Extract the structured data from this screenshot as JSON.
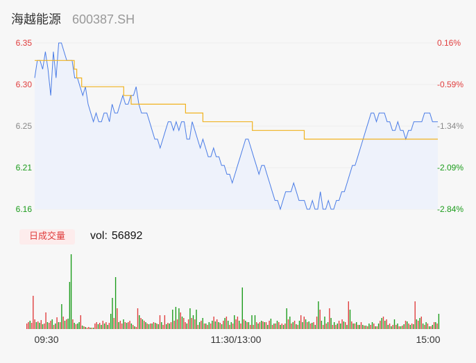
{
  "header": {
    "name": "海越能源",
    "code": "600387.SH"
  },
  "volume": {
    "badge": "日成交量",
    "label": "vol:",
    "value": "56892"
  },
  "colors": {
    "up": "#e03c3c",
    "down": "#1a9b1a",
    "price_line": "#4a7ce6",
    "avg_line": "#f0b21e",
    "neutral": "#888888"
  },
  "chart_data": [
    {
      "type": "line",
      "series": [
        {
          "values": [
            6.31,
            6.33,
            6.33,
            6.32,
            6.34,
            6.32,
            6.29,
            6.34,
            6.31,
            6.35,
            6.35,
            6.34,
            6.33,
            6.33,
            6.33,
            6.31,
            6.31,
            6.3,
            6.29,
            6.3,
            6.28,
            6.27,
            6.26,
            6.27,
            6.26,
            6.26,
            6.27,
            6.27,
            6.26,
            6.28,
            6.27,
            6.27,
            6.28,
            6.29,
            6.28,
            6.28,
            6.29,
            6.29,
            6.3,
            6.28,
            6.27,
            6.27,
            6.27,
            6.26,
            6.25,
            6.24,
            6.24,
            6.23,
            6.24,
            6.25,
            6.26,
            6.26,
            6.25,
            6.26,
            6.25,
            6.26,
            6.26,
            6.24,
            6.24,
            6.26,
            6.25,
            6.24,
            6.23,
            6.24,
            6.23,
            6.22,
            6.22,
            6.23,
            6.22,
            6.22,
            6.21,
            6.21,
            6.2,
            6.2,
            6.19,
            6.2,
            6.21,
            6.22,
            6.23,
            6.24,
            6.24,
            6.23,
            6.22,
            6.21,
            6.2,
            6.21,
            6.21,
            6.2,
            6.19,
            6.18,
            6.17,
            6.17,
            6.16,
            6.17,
            6.18,
            6.18,
            6.18,
            6.19,
            6.18,
            6.17,
            6.17,
            6.17,
            6.16,
            6.16,
            6.17,
            6.16,
            6.16,
            6.18,
            6.16,
            6.16,
            6.17,
            6.16,
            6.16,
            6.17,
            6.17,
            6.18,
            6.18,
            6.19,
            6.2,
            6.21,
            6.21,
            6.22,
            6.23,
            6.24,
            6.25,
            6.26,
            6.27,
            6.27,
            6.26,
            6.27,
            6.27,
            6.27,
            6.26,
            6.26,
            6.25,
            6.25,
            6.26,
            6.25,
            6.25,
            6.24,
            6.25,
            6.25,
            6.26,
            6.26,
            6.26,
            6.26,
            6.27,
            6.27,
            6.27,
            6.26,
            6.26,
            6.26
          ]
        },
        {
          "values": [
            6.33,
            6.33,
            6.33,
            6.33,
            6.33,
            6.33,
            6.33,
            6.33,
            6.33,
            6.33,
            6.33,
            6.33,
            6.33,
            6.33,
            6.33,
            6.33,
            6.32,
            6.31,
            6.31,
            6.3,
            6.3,
            6.3,
            6.3,
            6.3,
            6.3,
            6.3,
            6.3,
            6.3,
            6.3,
            6.3,
            6.3,
            6.3,
            6.3,
            6.3,
            6.3,
            6.3,
            6.29,
            6.29,
            6.29,
            6.28,
            6.28,
            6.28,
            6.28,
            6.28,
            6.28,
            6.28,
            6.28,
            6.28,
            6.28,
            6.28,
            6.28,
            6.28,
            6.28,
            6.28,
            6.28,
            6.28,
            6.28,
            6.28,
            6.28,
            6.28,
            6.28,
            6.27,
            6.27,
            6.27,
            6.27,
            6.27,
            6.27,
            6.27,
            6.26,
            6.26,
            6.26,
            6.26,
            6.26,
            6.26,
            6.26,
            6.26,
            6.26,
            6.26,
            6.26,
            6.26,
            6.26,
            6.26,
            6.26,
            6.26,
            6.26,
            6.26,
            6.26,
            6.26,
            6.25,
            6.25,
            6.25,
            6.25,
            6.25,
            6.25,
            6.25,
            6.25,
            6.25,
            6.25,
            6.25,
            6.25,
            6.25,
            6.25,
            6.25,
            6.25,
            6.25,
            6.25,
            6.25,
            6.25,
            6.25,
            6.24,
            6.24,
            6.24,
            6.24,
            6.24,
            6.24,
            6.24,
            6.24,
            6.24,
            6.24,
            6.24,
            6.24,
            6.24,
            6.24,
            6.24,
            6.24,
            6.24,
            6.24,
            6.24,
            6.24,
            6.24,
            6.24,
            6.24,
            6.24,
            6.24,
            6.24,
            6.24,
            6.24,
            6.24,
            6.24,
            6.24,
            6.24,
            6.24,
            6.24,
            6.24,
            6.24,
            6.24,
            6.24,
            6.24,
            6.24,
            6.24,
            6.24,
            6.24,
            6.24,
            6.24,
            6.24,
            6.24,
            6.24,
            6.24,
            6.24,
            6.24,
            6.24,
            6.24,
            6.24,
            6.24
          ]
        }
      ],
      "ylim": [
        6.16,
        6.35
      ],
      "y_tick_labels": [
        "6.35",
        "6.30",
        "6.25",
        "6.21",
        "6.16"
      ],
      "y2_tick_labels": [
        "0.16%",
        "-0.59%",
        "-1.34%",
        "-2.09%",
        "-2.84%"
      ],
      "x_tick_labels": [
        "09:30",
        "11:30/13:00",
        "15:00"
      ]
    },
    {
      "type": "bar",
      "values": [
        8,
        10,
        12,
        9,
        48,
        14,
        10,
        11,
        9,
        13,
        7,
        8,
        24,
        10,
        9,
        12,
        14,
        6,
        8,
        17,
        10,
        10,
        36,
        18,
        12,
        14,
        15,
        68,
        108,
        14,
        9,
        7,
        8,
        10,
        20,
        5,
        4,
        3,
        2,
        3,
        2,
        2,
        2,
        8,
        10,
        7,
        9,
        6,
        12,
        8,
        10,
        6,
        9,
        22,
        45,
        16,
        75,
        30,
        10,
        12,
        8,
        14,
        10,
        9,
        10,
        12,
        8,
        6,
        4,
        3,
        30,
        20,
        16,
        14,
        12,
        10,
        8,
        7,
        8,
        8,
        10,
        9,
        8,
        7,
        20,
        10,
        6,
        20,
        7,
        9,
        8,
        10,
        28,
        12,
        32,
        14,
        30,
        24,
        18,
        16,
        10,
        8,
        14,
        30,
        16,
        20,
        14,
        28,
        6,
        10,
        12,
        16,
        8,
        8,
        6,
        10,
        8,
        12,
        18,
        11,
        14,
        10,
        9,
        7,
        12,
        16,
        18,
        12,
        6,
        10,
        8,
        20,
        14,
        18,
        12,
        8,
        60,
        14,
        12,
        10,
        10,
        6,
        20,
        6,
        20,
        10,
        8,
        10,
        12,
        11,
        10,
        10,
        6,
        12,
        15,
        6,
        8,
        8,
        12,
        10,
        6,
        8,
        6,
        8,
        30,
        14,
        18,
        8,
        10,
        12,
        7,
        6,
        12,
        20,
        10,
        18,
        14,
        10,
        11,
        8,
        9,
        10,
        6,
        18,
        40,
        28,
        12,
        6,
        18,
        8,
        10,
        30,
        16,
        6,
        10,
        6,
        8,
        12,
        8,
        14,
        11,
        10,
        6,
        40,
        28,
        11,
        8,
        8,
        10,
        6,
        6,
        10,
        6,
        5,
        5,
        4,
        8,
        6,
        10,
        8,
        4,
        4,
        8,
        12,
        16,
        18,
        12,
        14,
        6,
        8,
        4,
        6,
        14,
        6,
        8,
        4,
        4,
        5,
        7,
        12,
        11,
        8,
        6,
        8,
        7,
        40,
        14,
        12,
        16,
        18,
        8,
        6,
        10,
        8,
        4,
        4,
        6,
        10,
        10,
        8,
        22
      ],
      "direction": [
        "u",
        "u",
        "d",
        "u",
        "u",
        "u",
        "d",
        "u",
        "d",
        "u",
        "d",
        "u",
        "u",
        "d",
        "u",
        "u",
        "d",
        "u",
        "d",
        "u",
        "d",
        "u",
        "d",
        "u",
        "d",
        "u",
        "d",
        "d",
        "d",
        "u",
        "d",
        "u",
        "d",
        "d",
        "u",
        "d",
        "u",
        "d",
        "u",
        "u",
        "d",
        "u",
        "d",
        "u",
        "u",
        "d",
        "u",
        "d",
        "u",
        "d",
        "u",
        "d",
        "u",
        "d",
        "d",
        "u",
        "d",
        "u",
        "d",
        "u",
        "u",
        "d",
        "u",
        "d",
        "u",
        "u",
        "d",
        "u",
        "d",
        "u",
        "u",
        "d",
        "u",
        "d",
        "u",
        "d",
        "u",
        "d",
        "u",
        "d",
        "u",
        "d",
        "u",
        "d",
        "u",
        "d",
        "u",
        "u",
        "d",
        "u",
        "d",
        "u",
        "d",
        "u",
        "d",
        "u",
        "d",
        "u",
        "d",
        "u",
        "u",
        "d",
        "u",
        "d",
        "u",
        "d",
        "u",
        "d",
        "u",
        "d",
        "u",
        "d",
        "u",
        "d",
        "u",
        "d",
        "u",
        "d",
        "u",
        "d",
        "u",
        "d",
        "u",
        "d",
        "u",
        "d",
        "u",
        "d",
        "u",
        "d",
        "u",
        "d",
        "u",
        "u",
        "d",
        "u",
        "d",
        "u",
        "d",
        "u",
        "d",
        "u",
        "d",
        "u",
        "d",
        "u",
        "d",
        "u",
        "d",
        "u",
        "d",
        "u",
        "d",
        "u",
        "d",
        "u",
        "d",
        "u",
        "d",
        "u",
        "d",
        "u",
        "d",
        "u",
        "d",
        "u",
        "d",
        "u",
        "d",
        "u",
        "d",
        "u",
        "d",
        "u",
        "d",
        "u",
        "d",
        "u",
        "d",
        "u",
        "d",
        "u",
        "d",
        "u",
        "d",
        "u",
        "d",
        "u",
        "d",
        "u",
        "d",
        "u",
        "d",
        "u",
        "d",
        "u",
        "d",
        "u",
        "d",
        "u",
        "d",
        "u",
        "d",
        "u",
        "d",
        "u",
        "d",
        "u",
        "d",
        "u",
        "d",
        "u",
        "d",
        "u",
        "d",
        "u",
        "d",
        "u",
        "d",
        "u",
        "d",
        "u",
        "d",
        "u",
        "d",
        "u",
        "d",
        "u",
        "d",
        "u",
        "d",
        "u",
        "d",
        "u",
        "d",
        "u",
        "d",
        "u",
        "d",
        "u",
        "d",
        "u",
        "d",
        "u",
        "d",
        "u",
        "d",
        "u",
        "d",
        "u",
        "d",
        "u",
        "d",
        "u",
        "d",
        "u",
        "d",
        "u",
        "d",
        "u",
        "d",
        "u"
      ],
      "ylim": [
        0,
        108
      ]
    }
  ]
}
